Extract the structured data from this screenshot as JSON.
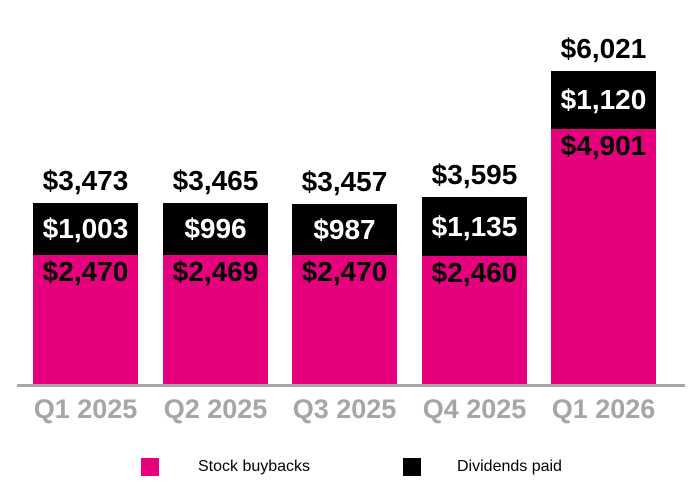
{
  "chart_data": {
    "type": "bar",
    "stacked": true,
    "title": "",
    "xlabel": "",
    "ylabel": "",
    "grid": false,
    "legend_position": "bottom",
    "value_prefix": "$",
    "categories": [
      "Q1 2025",
      "Q2 2025",
      "Q3 2025",
      "Q4 2025",
      "Q1 2026"
    ],
    "series": [
      {
        "name": "Stock buybacks",
        "color": "#E6007E",
        "values": [
          2470,
          2469,
          2470,
          2460,
          4901
        ],
        "labels": [
          "$2,470",
          "$2,469",
          "$2,470",
          "$2,460",
          "$4,901"
        ],
        "label_color": "#000000"
      },
      {
        "name": "Dividends paid",
        "color": "#000000",
        "values": [
          1003,
          996,
          987,
          1135,
          1120
        ],
        "labels": [
          "$1,003",
          "$996",
          "$987",
          "$1,135",
          "$1,120"
        ],
        "label_color": "#FFFFFF"
      }
    ],
    "totals": [
      3473,
      3465,
      3457,
      3595,
      6021
    ],
    "total_labels": [
      "$3,473",
      "$3,465",
      "$3,457",
      "$3,595",
      "$6,021"
    ],
    "ylim": [
      0,
      6021
    ]
  },
  "legend": {
    "items": [
      {
        "label": "Stock buybacks",
        "color": "#E6007E"
      },
      {
        "label": "Dividends paid",
        "color": "#000000"
      }
    ]
  },
  "colors": {
    "background": "#FFFFFF",
    "axis_line": "#A6A6A6",
    "tick_label": "#A6A6A6",
    "total_label": "#000000"
  }
}
